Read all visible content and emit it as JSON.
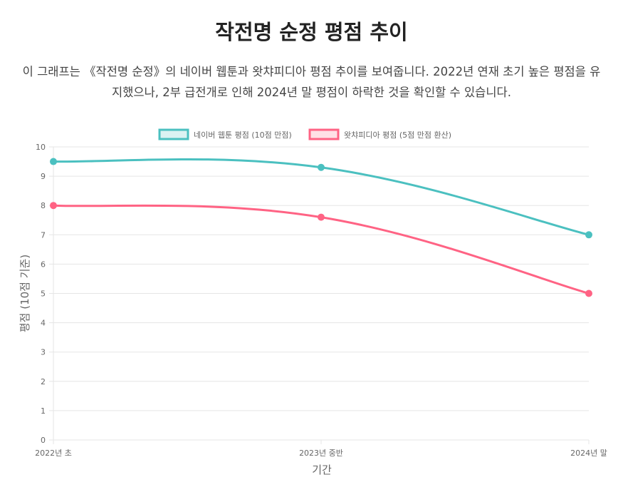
{
  "title": "작전명 순정 평점 추이",
  "description": "이 그래프는 《작전명 순정》의 네이버 웹툰과 왓챠피디아 평점 추이를 보여줍니다. 2022년 연재 초기 높은 평점을 유지했으나, 2부 급전개로 인해 2024년 말 평점이 하락한 것을 확인할 수 있습니다.",
  "chart_data": {
    "type": "line",
    "categories": [
      "2022년 초",
      "2023년 중반",
      "2024년 말"
    ],
    "series": [
      {
        "name": "네이버 웹툰 평점 (10점 만점)",
        "values": [
          9.5,
          9.3,
          7.0
        ],
        "color": "#4bc0c0",
        "fill": "#dbf2f2"
      },
      {
        "name": "왓챠피디아 평점 (5점 만점 환산)",
        "values": [
          8.0,
          7.6,
          5.0
        ],
        "color": "#ff6384",
        "fill": "#ffe0e6"
      }
    ],
    "xlabel": "기간",
    "ylabel": "평점 (10점 기준)",
    "ylim": [
      0,
      10
    ],
    "yticks": [
      "0",
      "1",
      "2",
      "3",
      "4",
      "5",
      "6",
      "7",
      "8",
      "9",
      "10"
    ],
    "grid": true,
    "legend": "top"
  }
}
